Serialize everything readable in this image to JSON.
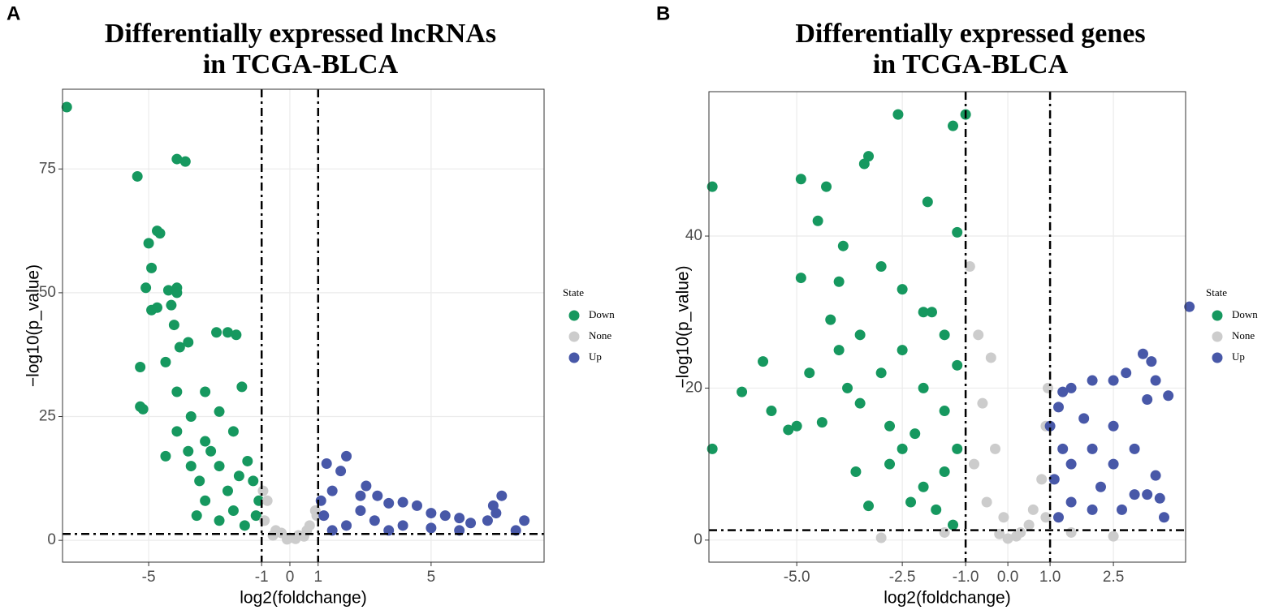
{
  "chart_data": [
    {
      "type": "scatter",
      "panel_label": "A",
      "title": "Differentially expressed lncRNAs",
      "subtitle": "in TCGA-BLCA",
      "xlabel": "log2(foldchange)",
      "ylabel": "−log10(p_value)",
      "xlim": [
        -8.05,
        9.0
      ],
      "ylim": [
        -4.4,
        91.1
      ],
      "xticks": [
        -5,
        -1,
        0,
        1,
        5
      ],
      "yticks": [
        0,
        25,
        50,
        75
      ],
      "grid": true,
      "vlines": [
        -1,
        1
      ],
      "hline": 1.3,
      "legend_title": "State",
      "series": [
        {
          "name": "Down",
          "color": "#16985f",
          "x": [
            -7.9,
            -5.4,
            -4.0,
            -3.7,
            -4.7,
            -4.6,
            -5.0,
            -4.9,
            -5.1,
            -4.3,
            -4.0,
            -4.0,
            -4.9,
            -4.7,
            -4.2,
            -4.1,
            -3.9,
            -3.6,
            -2.6,
            -2.2,
            -1.9,
            -4.4,
            -5.3,
            -5.3,
            -5.2,
            -4.0,
            -3.0,
            -1.7,
            -3.5,
            -2.5,
            -4.0,
            -3.0,
            -2.0,
            -4.4,
            -3.5,
            -2.5,
            -1.5,
            -3.2,
            -2.2,
            -1.3,
            -3.0,
            -2.0,
            -1.2,
            -1.6,
            -2.5,
            -1.1,
            -3.6,
            -2.8,
            -1.8,
            -3.3
          ],
          "values": [
            87.5,
            73.5,
            77,
            76.5,
            62.5,
            62,
            60,
            55,
            51,
            50.5,
            51,
            50,
            46.5,
            47,
            47.5,
            43.5,
            39,
            40,
            42,
            42,
            41.5,
            36,
            35,
            27,
            26.5,
            30,
            30,
            31,
            25,
            26,
            22,
            20,
            22,
            17,
            15,
            15,
            16,
            12,
            10,
            12,
            8,
            6,
            5,
            3,
            4,
            8,
            18,
            18,
            13,
            5
          ]
        },
        {
          "name": "None",
          "color": "#cccccc",
          "x": [
            -0.9,
            -0.5,
            0,
            0.3,
            0.7,
            0.9,
            -0.8,
            -0.3,
            0.5,
            -0.95,
            0.95,
            0.2,
            -0.6,
            -0.1,
            0.6
          ],
          "values": [
            4,
            2,
            0.5,
            1,
            3,
            6,
            8,
            1.5,
            0.8,
            10,
            5,
            0.3,
            1,
            0.2,
            2
          ]
        },
        {
          "name": "Up",
          "color": "#4858a8",
          "x": [
            1.3,
            2.0,
            1.8,
            2.7,
            3.1,
            3.5,
            4.0,
            4.5,
            5.0,
            5.5,
            6.0,
            6.4,
            7.0,
            7.2,
            7.5,
            7.3,
            8.3,
            8.0,
            1.5,
            2.5,
            3.0,
            4.0,
            5.0,
            1.2,
            2.0,
            1.5,
            3.5,
            6.0,
            2.5,
            1.1
          ],
          "values": [
            15.5,
            17,
            14,
            11,
            9,
            7.5,
            7.7,
            7,
            5.5,
            5,
            4.5,
            3.5,
            4,
            7,
            9,
            5.5,
            4,
            2,
            10,
            6,
            4,
            3,
            2.5,
            5,
            3,
            2,
            2,
            2,
            9,
            8
          ]
        }
      ]
    },
    {
      "type": "scatter",
      "panel_label": "B",
      "title": "Differentially expressed genes",
      "subtitle": "in TCGA-BLCA",
      "xlabel": "log2(foldchange)",
      "ylabel": "−log10(p_value)",
      "xlim": [
        -7.08,
        4.21
      ],
      "ylim": [
        -2.9,
        59.0
      ],
      "xticks": [
        {
          "value": -5,
          "label": "-5.0"
        },
        -2.5,
        {
          "value": -1,
          "label": "-1.0"
        },
        {
          "value": 0,
          "label": "0.0"
        },
        {
          "value": 1,
          "label": "1.0"
        },
        2.5
      ],
      "yticks": [
        0,
        20,
        40
      ],
      "grid": true,
      "vlines": [
        -1,
        1
      ],
      "hline": 1.3,
      "legend_title": "State",
      "series": [
        {
          "name": "Down",
          "color": "#16985f",
          "x": [
            -7.0,
            -7.0,
            -6.3,
            -5.8,
            -5.6,
            -5.2,
            -5.0,
            -4.9,
            -4.3,
            -4.5,
            -3.9,
            -3.4,
            -3.3,
            -2.6,
            -1.9,
            -1.3,
            -1.0,
            -1.2,
            -3.0,
            -2.5,
            -2.0,
            -4.0,
            -4.9,
            -4.2,
            -4.7,
            -4.0,
            -3.5,
            -3.0,
            -2.5,
            -2.0,
            -1.5,
            -3.5,
            -2.8,
            -2.2,
            -1.5,
            -3.6,
            -3.3,
            -2.8,
            -2.0,
            -1.5,
            -1.2,
            -1.7,
            -1.3,
            -2.5,
            -1.2,
            -1.8,
            -4.4,
            -3.8,
            -2.3
          ],
          "values": [
            46.5,
            12,
            19.5,
            23.5,
            17,
            14.5,
            15,
            47.5,
            46.5,
            42,
            38.7,
            49.5,
            50.5,
            56,
            44.5,
            54.5,
            56,
            40.5,
            36,
            33,
            30,
            34,
            34.5,
            29,
            22,
            25,
            27,
            22,
            25,
            20,
            27,
            18,
            15,
            14,
            17,
            9,
            4.5,
            10,
            7,
            9,
            12,
            4,
            2,
            12,
            23,
            30,
            15.5,
            20,
            5
          ]
        },
        {
          "name": "None",
          "color": "#cccccc",
          "x": [
            -0.9,
            -0.7,
            -0.4,
            -0.6,
            -0.3,
            0,
            0.2,
            0.5,
            0.8,
            0.9,
            -0.8,
            -0.5,
            0.3,
            -0.2,
            0.6,
            -0.1,
            0.9,
            1.5,
            2.5,
            -1.5,
            -3,
            0.95
          ],
          "values": [
            36,
            27,
            24,
            18,
            12,
            0.2,
            0.5,
            2,
            8,
            15,
            10,
            5,
            1,
            0.8,
            4,
            3,
            3,
            1,
            0.5,
            1,
            0.3,
            20
          ]
        },
        {
          "name": "Up",
          "color": "#4858a8",
          "x": [
            4.3,
            3.2,
            3.4,
            2.8,
            2.5,
            2.0,
            3.5,
            3.8,
            1.5,
            1.3,
            1.2,
            1.0,
            3.3,
            2.5,
            2,
            1.5,
            1.1,
            1.5,
            2.0,
            3.5,
            3.7,
            3.6,
            3.3,
            2.7,
            3,
            2.2,
            1.2,
            2.5,
            1.8,
            3.0,
            1.3
          ],
          "values": [
            30.7,
            24.5,
            23.5,
            22,
            21,
            21,
            21,
            19,
            20,
            19.5,
            17.5,
            15,
            18.5,
            15,
            12,
            10,
            8,
            5,
            4,
            8.5,
            3,
            5.5,
            6,
            4,
            6,
            7,
            3,
            10,
            16,
            12,
            12
          ]
        }
      ]
    }
  ]
}
